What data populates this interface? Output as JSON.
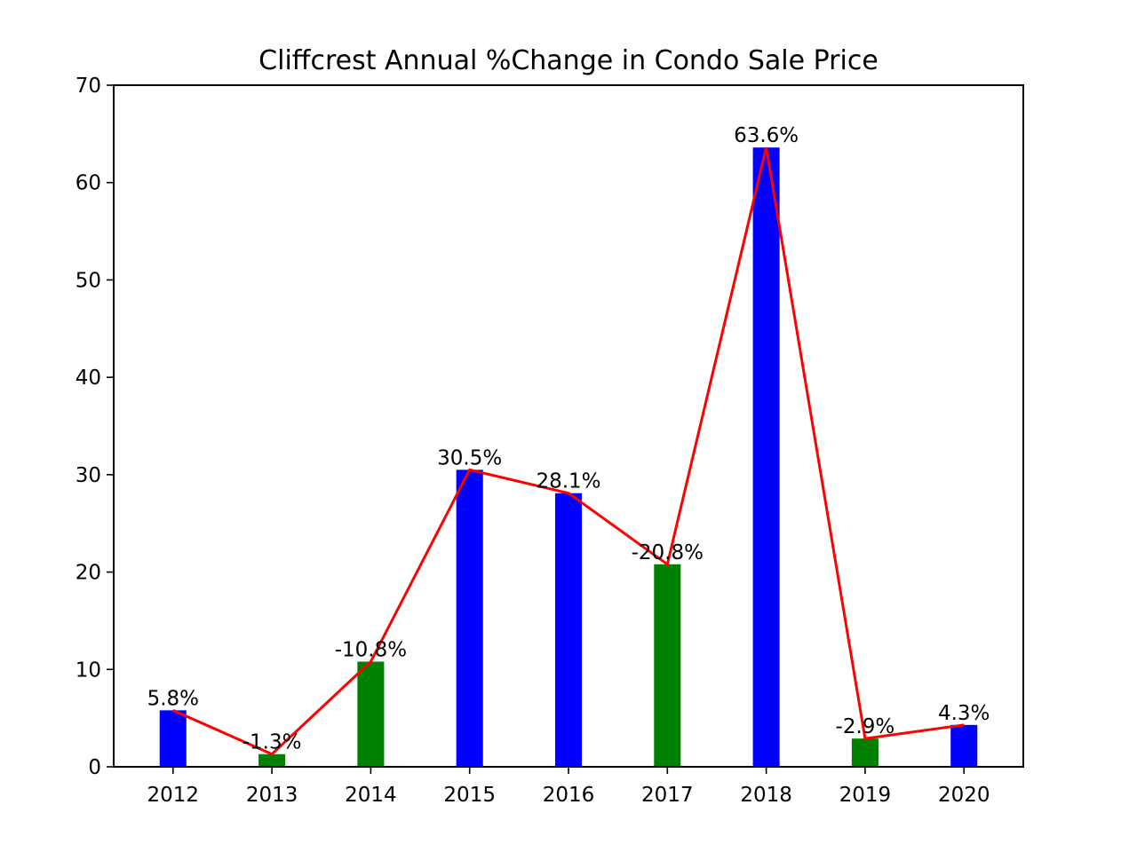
{
  "chart_data": {
    "type": "bar",
    "title": "Cliffcrest Annual %Change in Condo Sale Price",
    "xlabel": "",
    "ylabel": "",
    "categories": [
      "2012",
      "2013",
      "2014",
      "2015",
      "2016",
      "2017",
      "2018",
      "2019",
      "2020"
    ],
    "values": [
      5.8,
      1.3,
      10.8,
      30.5,
      28.1,
      20.8,
      63.6,
      2.9,
      4.3
    ],
    "bar_labels": [
      "5.8%",
      "-1.3%",
      "-10.8%",
      "30.5%",
      "28.1%",
      "-20.8%",
      "63.6%",
      "-2.9%",
      "4.3%"
    ],
    "bar_colors": [
      "#0000ff",
      "#008000",
      "#008000",
      "#0000ff",
      "#0000ff",
      "#008000",
      "#0000ff",
      "#008000",
      "#0000ff"
    ],
    "color_meaning": {
      "#0000ff": "increase",
      "#008000": "decrease (absolute value plotted)"
    },
    "line_overlay": {
      "type": "line",
      "values": [
        5.8,
        1.3,
        10.8,
        30.5,
        28.1,
        20.8,
        63.6,
        2.9,
        4.3
      ],
      "color": "#ff0000"
    },
    "ylim": [
      0,
      70
    ],
    "yticks": [
      0,
      10,
      20,
      30,
      40,
      50,
      60,
      70
    ],
    "grid": false,
    "legend": "none"
  }
}
